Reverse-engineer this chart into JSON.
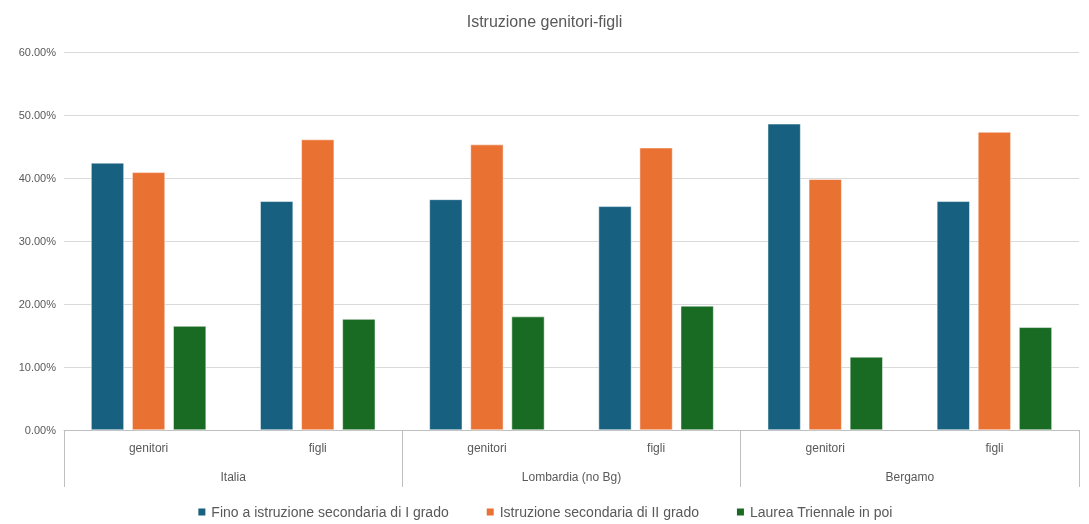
{
  "chart_data": {
    "type": "bar",
    "title": "Istruzione genitori-figli",
    "categories": [
      "genitori",
      "figli",
      "genitori",
      "figli",
      "genitori",
      "figli"
    ],
    "annotations": [
      "Italia",
      "Lombardia (no Bg)",
      "Bergamo"
    ],
    "series": [
      {
        "name": "Fino a istruzione secondaria di I grado",
        "color": "#17607f",
        "values": [
          42.4,
          36.3,
          36.6,
          35.5,
          48.6,
          36.3
        ]
      },
      {
        "name": "Istruzione secondaria di II grado",
        "color": "#e97132",
        "values": [
          40.9,
          46.1,
          45.3,
          44.8,
          39.8,
          47.3
        ]
      },
      {
        "name": "Laurea Triennale in poi",
        "color": "#196b24",
        "values": [
          16.5,
          17.6,
          18.0,
          19.7,
          11.6,
          16.3
        ]
      }
    ],
    "ylim": [
      0,
      60
    ],
    "yticks": [
      {
        "value": 0,
        "label": "0.00%"
      },
      {
        "value": 10,
        "label": "10.00%"
      },
      {
        "value": 20,
        "label": "20.00%"
      },
      {
        "value": 30,
        "label": "30.00%"
      },
      {
        "value": 40,
        "label": "40.00%"
      },
      {
        "value": 50,
        "label": "50.00%"
      },
      {
        "value": 60,
        "label": "60.00%"
      }
    ],
    "grid": "y",
    "legend": "bottom"
  }
}
